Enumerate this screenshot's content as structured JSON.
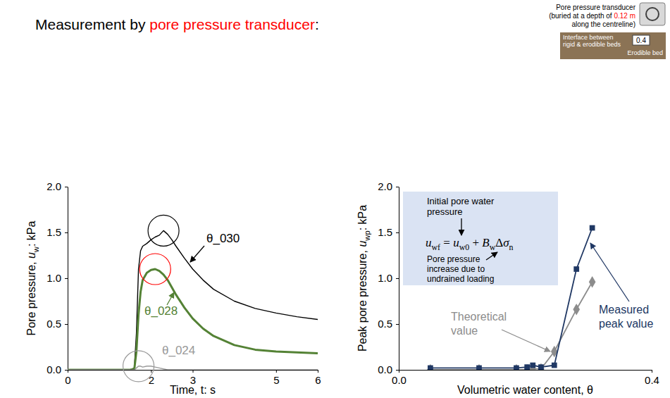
{
  "heading": [
    "Measurement by ",
    "pore pressure transducer",
    ":"
  ],
  "inset": {
    "caption": "Pore pressure transducer",
    "note": [
      "(buried at a depth of ",
      "0.12 m",
      " along the centreline)"
    ],
    "labels": [
      "Interface between rigid & erodible beds",
      "0.4",
      "Erodible bed"
    ]
  },
  "chart_data": [
    {
      "type": "line",
      "xlabel": "Time, t: s",
      "ylabel": [
        "Pore pressure, ",
        {
          "text": "u",
          "sub": "w"
        },
        ": kPa"
      ],
      "x": [
        0,
        1.5,
        1.6,
        1.65,
        1.7,
        1.75,
        1.8,
        1.9,
        2.0,
        2.1,
        2.2,
        2.3,
        2.4,
        2.5,
        2.6,
        2.8,
        3.0,
        3.25,
        3.5,
        4.0,
        4.5,
        5.0,
        5.5,
        6.0
      ],
      "series": [
        {
          "name": "θ_030",
          "color": "#000000",
          "values": [
            0,
            0,
            0.02,
            0.4,
            1.1,
            1.3,
            1.35,
            1.38,
            1.42,
            1.45,
            1.47,
            1.52,
            1.48,
            1.42,
            1.35,
            1.22,
            1.1,
            0.98,
            0.88,
            0.75,
            0.67,
            0.62,
            0.58,
            0.55
          ]
        },
        {
          "name": "θ_028",
          "color": "#548235",
          "values": [
            0,
            0,
            0.01,
            0.2,
            0.6,
            0.85,
            0.98,
            1.06,
            1.09,
            1.1,
            1.08,
            1.04,
            0.98,
            0.9,
            0.82,
            0.68,
            0.56,
            0.45,
            0.37,
            0.27,
            0.22,
            0.2,
            0.19,
            0.18
          ]
        },
        {
          "name": "θ_024",
          "color": "#999999",
          "values": [
            0,
            0,
            0,
            0.02,
            0.04,
            0.04,
            0.03,
            0.04,
            0.04,
            0.03,
            0.02,
            0.01,
            0,
            0,
            0,
            0,
            0,
            0,
            0,
            0,
            0,
            0,
            0,
            0
          ]
        }
      ],
      "xlim": [
        0,
        6
      ],
      "xticks": [
        0,
        2,
        3,
        5,
        6
      ],
      "ylim": [
        0,
        2
      ],
      "yticks": [
        {
          "value": 0,
          "label": "0.0"
        },
        0.5,
        {
          "value": 1,
          "label": "1.0"
        },
        1.5,
        {
          "value": 2,
          "label": "2.0"
        }
      ],
      "grid": false
    },
    {
      "type": "line",
      "xlabel": "Volumetric water content, θ",
      "ylabel": [
        "Peak pore pressure, ",
        {
          "text": "u",
          "sub": "wp"
        },
        ": kPa"
      ],
      "x": [
        0.05,
        0.127,
        0.186,
        0.203,
        0.212,
        0.225,
        0.246,
        0.281,
        0.306
      ],
      "series": [
        {
          "name": "Theoretical value",
          "color": "#8c8c8c",
          "marker": "diamond",
          "values": [
            0,
            0,
            0,
            0,
            0.01,
            0.01,
            0.2,
            0.66,
            0.96
          ]
        },
        {
          "name": "Measured peak value",
          "color": "#203864",
          "marker": "square",
          "values": [
            0.02,
            0.02,
            0.02,
            0.03,
            0.05,
            0.03,
            0.05,
            1.1,
            1.55
          ]
        }
      ],
      "xlim": [
        0,
        0.4
      ],
      "xticks": [
        {
          "value": 0,
          "label": "0.0"
        },
        0.4
      ],
      "ylim": [
        0,
        2
      ],
      "yticks": [
        {
          "value": 0,
          "label": "0.0"
        },
        0.5,
        {
          "value": 1,
          "label": "1.0"
        },
        1.5,
        {
          "value": 2,
          "label": "2.0"
        }
      ],
      "grid": false,
      "formula_box": {
        "top_note": "Initial pore water pressure",
        "formula": [
          {
            "text": "u",
            "sub": "wf"
          },
          " = ",
          {
            "text": "u",
            "sub": "w0"
          },
          " + ",
          {
            "text": "B",
            "sub": "w"
          },
          "Δ",
          {
            "text": "σ",
            "sub": "n"
          }
        ],
        "bottom_note": "Pore pressure increase due to undrained loading"
      }
    }
  ]
}
